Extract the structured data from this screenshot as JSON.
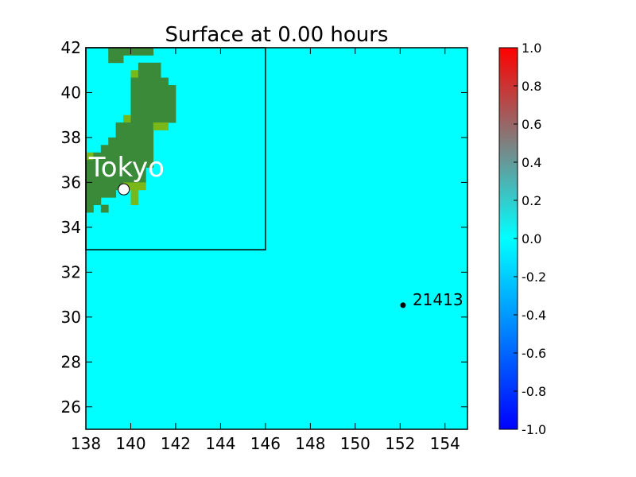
{
  "chart_data": {
    "type": "heatmap",
    "title": "Surface at 0.00 hours",
    "xlabel": "",
    "ylabel": "",
    "xlim": [
      138,
      155
    ],
    "ylim": [
      25,
      42
    ],
    "x_ticks": [
      "138",
      "140",
      "142",
      "144",
      "146",
      "148",
      "150",
      "152",
      "154"
    ],
    "y_ticks": [
      "26",
      "28",
      "30",
      "32",
      "34",
      "36",
      "38",
      "40",
      "42"
    ],
    "surface_value": 0.0,
    "colorbar": {
      "range": [
        -1.0,
        1.0
      ],
      "ticks": [
        "-1.0",
        "-0.8",
        "-0.6",
        "-0.4",
        "-0.2",
        "0.0",
        "0.2",
        "0.4",
        "0.6",
        "0.8",
        "1.0"
      ],
      "colors": {
        "low": "#0000ff",
        "mid": "#00ffff",
        "high": "#ff0000"
      }
    },
    "colors": {
      "sea": "#00ffff",
      "land": "#3a8a3a",
      "land_low": "#7ab81a"
    },
    "inset_box": {
      "x0": 138,
      "x1": 146,
      "y0": 33,
      "y1": 42
    },
    "markers": [
      {
        "label": "Tokyo",
        "x": 139.69,
        "y": 35.69,
        "style": "open-circle"
      },
      {
        "label": "21413",
        "x": 152.13,
        "y": 30.53,
        "style": "dot"
      }
    ],
    "land_rows": [
      {
        "y0": 41.667,
        "y1": 42.0,
        "segments": [
          [
            139.0,
            141.0,
            "land"
          ]
        ]
      },
      {
        "y0": 41.333,
        "y1": 41.667,
        "segments": [
          [
            139.0,
            139.667,
            "land"
          ]
        ]
      },
      {
        "y0": 41.0,
        "y1": 41.333,
        "segments": [
          [
            140.333,
            141.333,
            "land"
          ]
        ]
      },
      {
        "y0": 40.667,
        "y1": 41.0,
        "segments": [
          [
            140.0,
            140.333,
            "land_low"
          ],
          [
            140.333,
            141.333,
            "land"
          ]
        ]
      },
      {
        "y0": 40.333,
        "y1": 40.667,
        "segments": [
          [
            140.0,
            141.667,
            "land"
          ]
        ]
      },
      {
        "y0": 40.0,
        "y1": 40.333,
        "segments": [
          [
            140.0,
            142.0,
            "land"
          ]
        ]
      },
      {
        "y0": 39.667,
        "y1": 40.0,
        "segments": [
          [
            140.0,
            142.0,
            "land"
          ]
        ]
      },
      {
        "y0": 39.333,
        "y1": 39.667,
        "segments": [
          [
            140.0,
            142.0,
            "land"
          ]
        ]
      },
      {
        "y0": 39.0,
        "y1": 39.333,
        "segments": [
          [
            140.0,
            142.0,
            "land"
          ]
        ]
      },
      {
        "y0": 38.667,
        "y1": 39.0,
        "segments": [
          [
            139.667,
            140.0,
            "land_low"
          ],
          [
            140.0,
            142.0,
            "land"
          ]
        ]
      },
      {
        "y0": 38.333,
        "y1": 38.667,
        "segments": [
          [
            139.333,
            141.0,
            "land"
          ],
          [
            141.0,
            141.667,
            "land_low"
          ]
        ]
      },
      {
        "y0": 38.0,
        "y1": 38.333,
        "segments": [
          [
            139.333,
            141.0,
            "land"
          ]
        ]
      },
      {
        "y0": 37.667,
        "y1": 38.0,
        "segments": [
          [
            139.0,
            141.0,
            "land"
          ]
        ]
      },
      {
        "y0": 37.333,
        "y1": 37.667,
        "segments": [
          [
            138.667,
            141.0,
            "land"
          ]
        ]
      },
      {
        "y0": 37.0,
        "y1": 37.333,
        "segments": [
          [
            138.0,
            138.333,
            "land_low"
          ],
          [
            138.333,
            141.0,
            "land"
          ]
        ]
      },
      {
        "y0": 36.667,
        "y1": 37.0,
        "segments": [
          [
            138.0,
            141.0,
            "land"
          ]
        ]
      },
      {
        "y0": 36.333,
        "y1": 36.667,
        "segments": [
          [
            138.0,
            140.667,
            "land"
          ]
        ]
      },
      {
        "y0": 36.0,
        "y1": 36.333,
        "segments": [
          [
            138.0,
            140.667,
            "land"
          ]
        ]
      },
      {
        "y0": 35.667,
        "y1": 36.0,
        "segments": [
          [
            138.0,
            139.667,
            "land"
          ],
          [
            139.667,
            140.667,
            "land_low"
          ]
        ]
      },
      {
        "y0": 35.333,
        "y1": 35.667,
        "segments": [
          [
            138.0,
            139.333,
            "land"
          ],
          [
            140.0,
            140.333,
            "land_low"
          ]
        ]
      },
      {
        "y0": 35.0,
        "y1": 35.333,
        "segments": [
          [
            138.0,
            138.667,
            "land"
          ],
          [
            140.0,
            140.333,
            "land_low"
          ]
        ]
      },
      {
        "y0": 34.667,
        "y1": 35.0,
        "segments": [
          [
            138.0,
            138.333,
            "land"
          ],
          [
            138.667,
            139.0,
            "land"
          ]
        ]
      }
    ]
  }
}
